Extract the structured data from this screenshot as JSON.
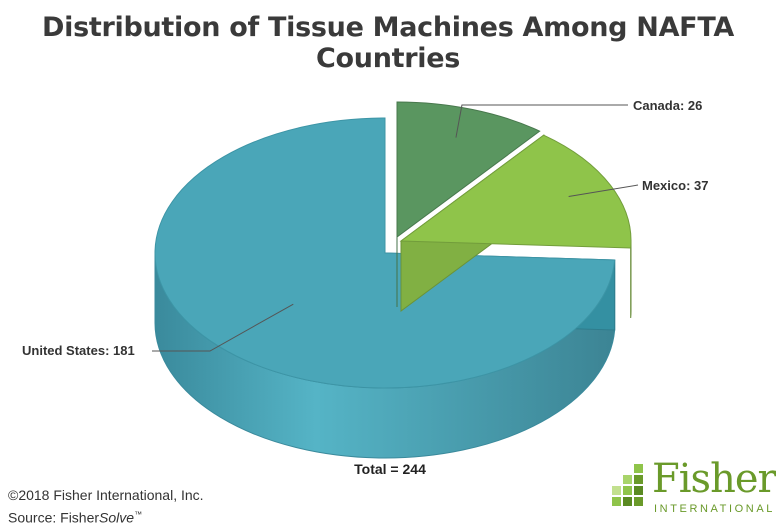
{
  "chart_data": {
    "type": "pie",
    "title": "Distribution of Tissue Machines Among NAFTA Countries",
    "slices": [
      {
        "label": "United States: 181",
        "name": "United States",
        "value": 181,
        "color": "#4aa6b8"
      },
      {
        "label": "Canada: 26",
        "name": "Canada",
        "value": 26,
        "color": "#5a9660"
      },
      {
        "label": "Mexico: 37",
        "name": "Mexico",
        "value": 37,
        "color": "#8fc44a"
      }
    ],
    "total_label": "Total = 244",
    "style": "3d-exploded"
  },
  "footer": {
    "copyright": "©2018 Fisher International, Inc.",
    "source_prefix": "Source: Fisher",
    "source_italic": "Solve",
    "source_tm": "™"
  },
  "logo": {
    "word": "Fisher",
    "sub": "INTERNATIONAL",
    "color": "#6a9a2a"
  }
}
